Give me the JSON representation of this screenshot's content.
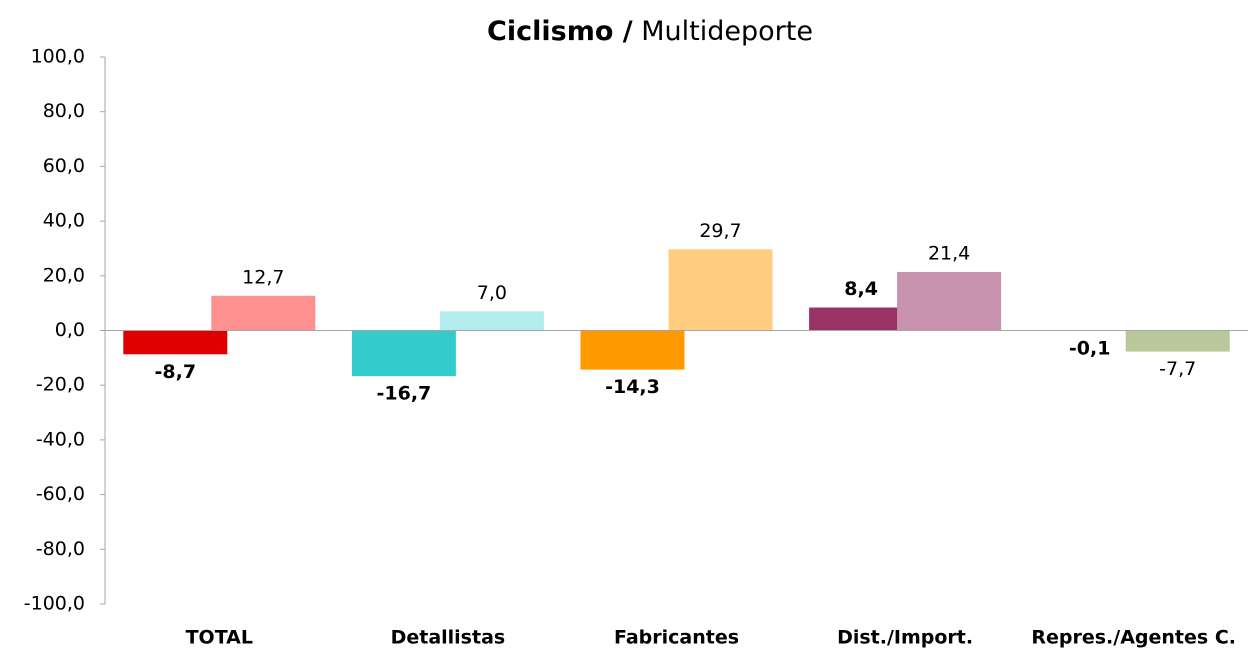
{
  "chart_data": {
    "type": "bar",
    "title": {
      "bold": "Ciclismo /",
      "regular": "Multideporte"
    },
    "categories": [
      "TOTAL",
      "Detallistas",
      "Fabricantes",
      "Dist./Import.",
      "Repres./Agentes C."
    ],
    "series": [
      {
        "colors": [
          "#e00000",
          "#33cccc",
          "#ff9900",
          "#993366",
          "#7f7f4f"
        ],
        "values": [
          -8.7,
          -16.7,
          -14.3,
          8.4,
          -0.1
        ],
        "value_labels": [
          "-8,7",
          "-16,7",
          "-14,3",
          "8,4",
          "-0,1"
        ]
      },
      {
        "colors": [
          "#ff9090",
          "#b3ecec",
          "#ffcc80",
          "#c993b0",
          "#b9c79a"
        ],
        "values": [
          12.7,
          7.0,
          29.7,
          21.4,
          -7.7
        ],
        "value_labels": [
          "12,7",
          "7,0",
          "29,7",
          "21,4",
          "-7,7"
        ]
      }
    ],
    "ylim": [
      -100,
      100
    ],
    "yticks": [
      {
        "value": -100,
        "label": "-100,0"
      },
      {
        "value": -80,
        "label": "-80,0"
      },
      {
        "value": -60,
        "label": "-60,0"
      },
      {
        "value": -40,
        "label": "-40,0"
      },
      {
        "value": -20,
        "label": "-20,0"
      },
      {
        "value": 0,
        "label": "0,0"
      },
      {
        "value": 20,
        "label": "20,0"
      },
      {
        "value": 40,
        "label": "40,0"
      },
      {
        "value": 60,
        "label": "60,0"
      },
      {
        "value": 80,
        "label": "80,0"
      },
      {
        "value": 100,
        "label": "100,0"
      }
    ],
    "grid": false,
    "negative_label_color": "#ff0000"
  }
}
